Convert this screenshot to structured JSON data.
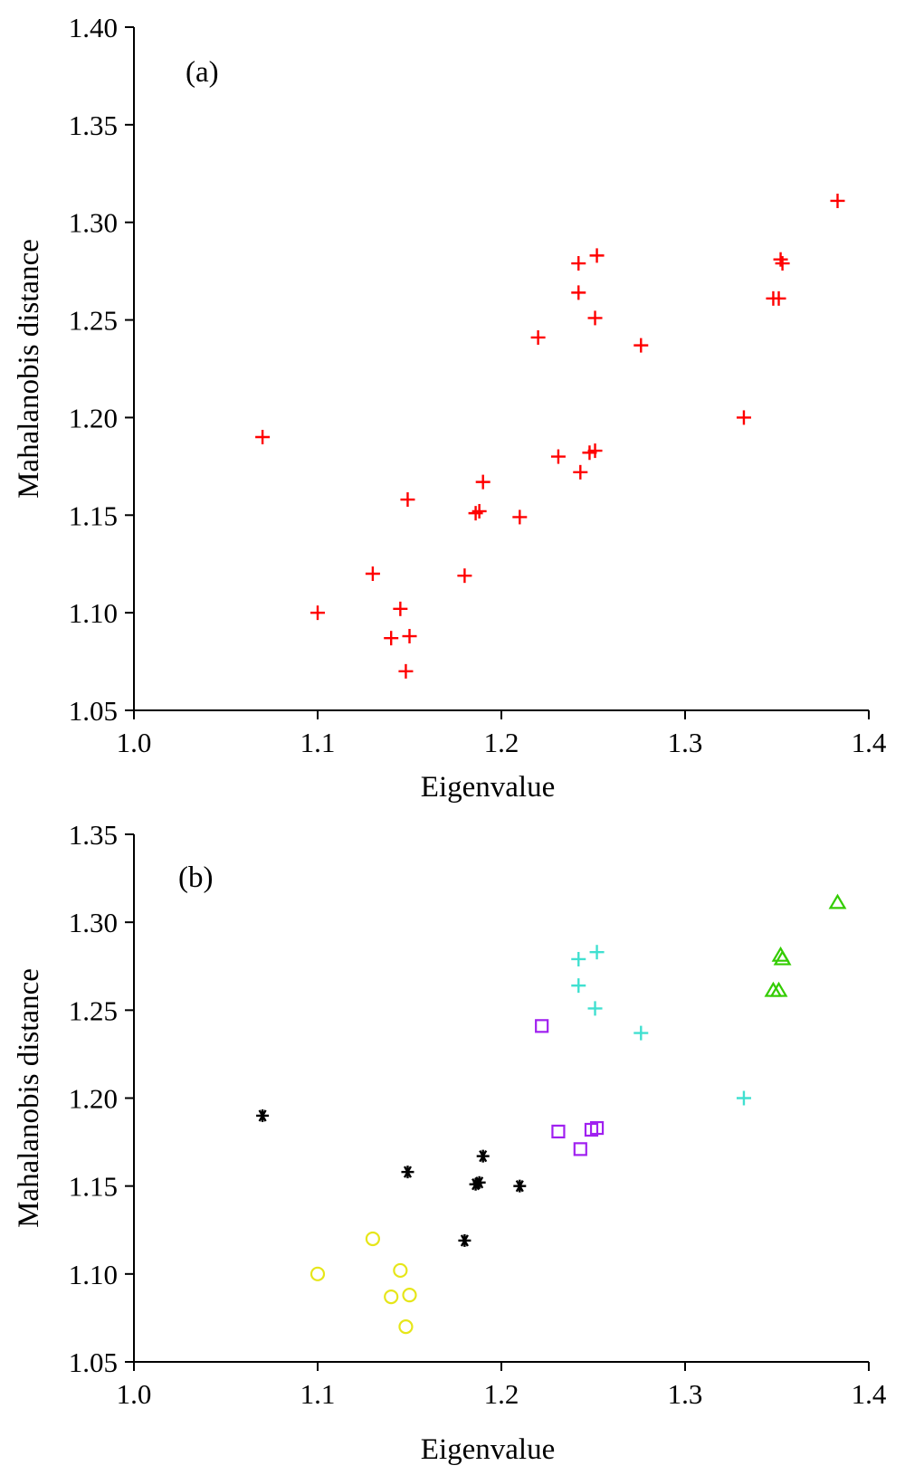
{
  "chart_data": [
    {
      "type": "scatter",
      "panel_label": "(a)",
      "xlabel": "Eigenvalue",
      "ylabel": "Mahalanobis distance",
      "xlim": [
        1.0,
        1.4
      ],
      "ylim": [
        1.05,
        1.4
      ],
      "xticks": [
        "1.0",
        "1.1",
        "1.2",
        "1.3",
        "1.4"
      ],
      "yticks": [
        "1.05",
        "1.10",
        "1.15",
        "1.20",
        "1.25",
        "1.30",
        "1.35",
        "1.40"
      ],
      "grid": false,
      "series": [
        {
          "marker": "plus",
          "color": "#ff0000",
          "points": [
            [
              1.07,
              1.19
            ],
            [
              1.1,
              1.1
            ],
            [
              1.13,
              1.12
            ],
            [
              1.14,
              1.087
            ],
            [
              1.145,
              1.102
            ],
            [
              1.15,
              1.088
            ],
            [
              1.148,
              1.07
            ],
            [
              1.149,
              1.158
            ],
            [
              1.18,
              1.119
            ],
            [
              1.186,
              1.151
            ],
            [
              1.188,
              1.152
            ],
            [
              1.19,
              1.167
            ],
            [
              1.21,
              1.149
            ],
            [
              1.22,
              1.241
            ],
            [
              1.231,
              1.18
            ],
            [
              1.242,
              1.279
            ],
            [
              1.242,
              1.264
            ],
            [
              1.243,
              1.172
            ],
            [
              1.248,
              1.182
            ],
            [
              1.251,
              1.183
            ],
            [
              1.252,
              1.283
            ],
            [
              1.251,
              1.251
            ],
            [
              1.276,
              1.237
            ],
            [
              1.332,
              1.2
            ],
            [
              1.348,
              1.261
            ],
            [
              1.351,
              1.261
            ],
            [
              1.352,
              1.281
            ],
            [
              1.353,
              1.279
            ],
            [
              1.383,
              1.311
            ]
          ]
        }
      ]
    },
    {
      "type": "scatter",
      "panel_label": "(b)",
      "xlabel": "Eigenvalue",
      "ylabel": "Mahalanobis distance",
      "xlim": [
        1.0,
        1.4
      ],
      "ylim": [
        1.05,
        1.35
      ],
      "xticks": [
        "1.0",
        "1.1",
        "1.2",
        "1.3",
        "1.4"
      ],
      "yticks": [
        "1.05",
        "1.10",
        "1.15",
        "1.20",
        "1.25",
        "1.30",
        "1.35"
      ],
      "grid": false,
      "series": [
        {
          "marker": "circle",
          "color": "#e6e619",
          "points": [
            [
              1.1,
              1.1
            ],
            [
              1.13,
              1.12
            ],
            [
              1.14,
              1.087
            ],
            [
              1.145,
              1.102
            ],
            [
              1.15,
              1.088
            ],
            [
              1.148,
              1.07
            ]
          ]
        },
        {
          "marker": "star",
          "color": "#000000",
          "points": [
            [
              1.07,
              1.19
            ],
            [
              1.149,
              1.158
            ],
            [
              1.18,
              1.119
            ],
            [
              1.186,
              1.151
            ],
            [
              1.188,
              1.152
            ],
            [
              1.19,
              1.167
            ],
            [
              1.21,
              1.15
            ]
          ]
        },
        {
          "marker": "square",
          "color": "#a020f0",
          "points": [
            [
              1.222,
              1.241
            ],
            [
              1.231,
              1.181
            ],
            [
              1.243,
              1.171
            ],
            [
              1.249,
              1.182
            ],
            [
              1.252,
              1.183
            ]
          ]
        },
        {
          "marker": "plus",
          "color": "#40e0d0",
          "points": [
            [
              1.242,
              1.279
            ],
            [
              1.242,
              1.264
            ],
            [
              1.252,
              1.283
            ],
            [
              1.251,
              1.251
            ],
            [
              1.276,
              1.237
            ],
            [
              1.332,
              1.2
            ]
          ]
        },
        {
          "marker": "triangle",
          "color": "#33cc00",
          "points": [
            [
              1.348,
              1.261
            ],
            [
              1.351,
              1.261
            ],
            [
              1.352,
              1.281
            ],
            [
              1.353,
              1.279
            ],
            [
              1.383,
              1.311
            ]
          ]
        }
      ]
    }
  ]
}
